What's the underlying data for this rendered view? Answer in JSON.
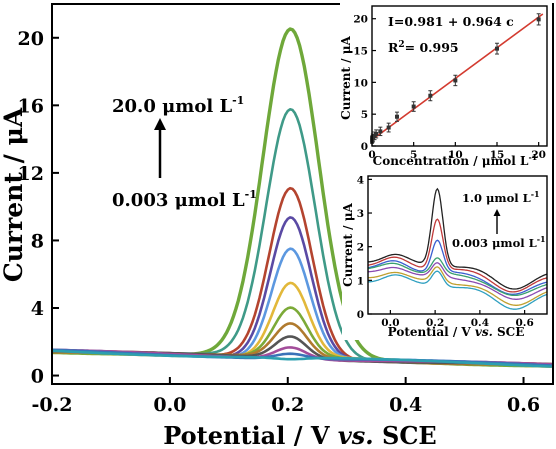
{
  "chart_data": [
    {
      "type": "line",
      "xlabel": {
        "pre": "Potential / V ",
        "vs": "vs.",
        "post": " SCE"
      },
      "ylabel": "Current / μA",
      "xlim": [
        -0.2,
        0.65
      ],
      "ylim": [
        -0.5,
        22
      ],
      "xticks": [
        "-0.2",
        "0.0",
        "0.2",
        "0.4",
        "0.6"
      ],
      "yticks": [
        "0",
        "4",
        "8",
        "12",
        "16",
        "20"
      ],
      "annotations": {
        "top": "20.0 μmol L",
        "bottom": "0.003 μmol L",
        "sup": "-1"
      },
      "series": [
        {
          "peak": 20.3,
          "color": "#6fa83a"
        },
        {
          "peak": 15.6,
          "color": "#3f9a88"
        },
        {
          "peak": 11.0,
          "color": "#b4442f"
        },
        {
          "peak": 9.3,
          "color": "#5a4aa4"
        },
        {
          "peak": 7.4,
          "color": "#5c98e0"
        },
        {
          "peak": 5.3,
          "color": "#e2b83a"
        },
        {
          "peak": 3.8,
          "color": "#7caa38"
        },
        {
          "peak": 2.9,
          "color": "#b07a2e"
        },
        {
          "peak": 2.2,
          "color": "#555555"
        },
        {
          "peak": 1.6,
          "color": "#a34d9a"
        },
        {
          "peak": 1.2,
          "color": "#3a72b8"
        },
        {
          "peak": 0.8,
          "color": "#2c9fb0"
        }
      ]
    },
    {
      "type": "scatter",
      "xlabel": "Concentration / μmol L",
      "xlabel_sup": "-1",
      "ylabel": "Current / μA",
      "xlim": [
        0,
        21
      ],
      "ylim": [
        0,
        22
      ],
      "xticks": [
        "0",
        "5",
        "10",
        "15",
        "20"
      ],
      "yticks": [
        "0",
        "5",
        "10",
        "15",
        "20"
      ],
      "equation": "I=0.981 + 0.964 c",
      "r2_label": "R",
      "r2_sup": "2",
      "r2_value": "= 0.995",
      "fit": {
        "intercept": 0.981,
        "slope": 0.964
      },
      "x": [
        0.003,
        0.01,
        0.05,
        0.1,
        0.3,
        0.5,
        1.0,
        2.0,
        3.0,
        5.0,
        7.0,
        10.0,
        15.0,
        20.0
      ],
      "y": [
        0.9,
        1.0,
        1.1,
        1.3,
        1.6,
        1.9,
        2.3,
        2.9,
        4.6,
        6.2,
        7.9,
        10.3,
        15.3,
        19.9
      ],
      "colors": {
        "line": "#d33b30",
        "point": "#333333"
      }
    },
    {
      "type": "line",
      "xlabel": {
        "pre": "Potential / V ",
        "vs": "vs.",
        "post": " SCE"
      },
      "ylabel": "Current / μA",
      "xlim": [
        -0.1,
        0.7
      ],
      "ylim": [
        0,
        4.1
      ],
      "xticks": [
        "0.0",
        "0.2",
        "0.4",
        "0.6"
      ],
      "yticks": [
        "0",
        "1",
        "2",
        "3",
        "4"
      ],
      "annotations": {
        "top": "1.0 μmol L",
        "bottom": "0.003 μmol L",
        "sup": "-1"
      },
      "series": [
        {
          "peak": 3.85,
          "base": 1.55,
          "color": "#222222"
        },
        {
          "peak": 2.95,
          "base": 1.45,
          "color": "#c03a3a"
        },
        {
          "peak": 2.3,
          "base": 1.35,
          "color": "#3a5fd0"
        },
        {
          "peak": 1.75,
          "base": 1.3,
          "color": "#3aa070"
        },
        {
          "peak": 1.6,
          "base": 1.2,
          "color": "#8a4ab0"
        },
        {
          "peak": 1.5,
          "base": 1.05,
          "color": "#c0a030"
        },
        {
          "peak": 1.4,
          "base": 0.95,
          "color": "#30a0c0"
        }
      ]
    }
  ]
}
